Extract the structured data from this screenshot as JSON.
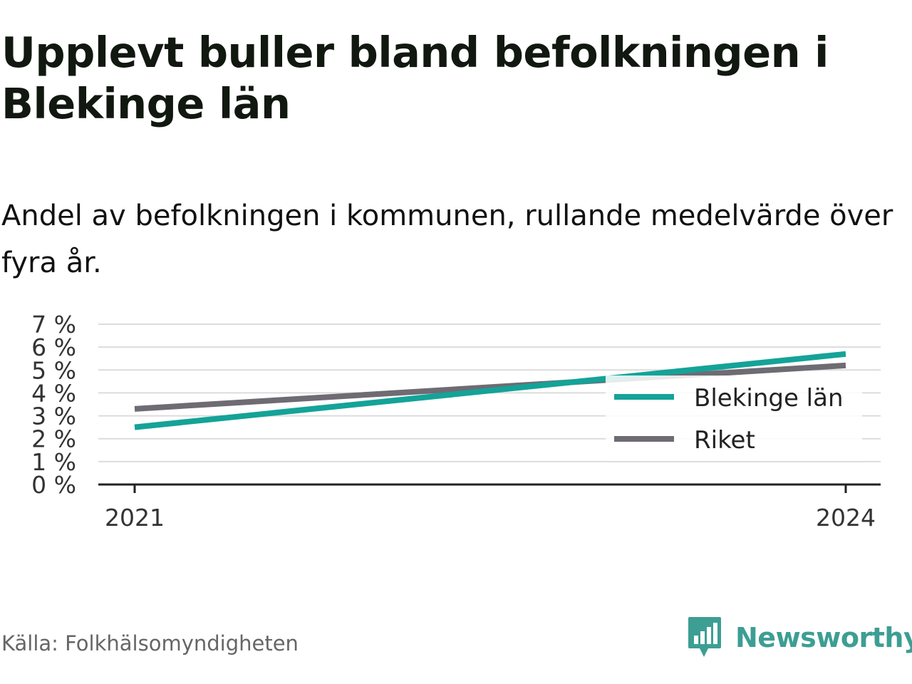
{
  "header": {
    "title": "Upplevt buller bland befolkningen i Blekinge län",
    "subtitle": "Andel av befolkningen i kommunen, rullande medelvärde över fyra år."
  },
  "footer": {
    "source": "Källa: Folkhälsomyndigheten",
    "brand": "Newsworthy",
    "brand_icon": "bar-chart-speech-bubble-icon"
  },
  "colors": {
    "series_blekinge": "#14a398",
    "series_riket": "#6e6b73",
    "grid": "#dcdcdc",
    "axis": "#222222",
    "brand": "#3d9e93"
  },
  "chart_data": {
    "type": "line",
    "x": [
      2021,
      2024
    ],
    "x_tick_labels": [
      "2021",
      "2024"
    ],
    "y_tick_labels": [
      "0 %",
      "1 %",
      "2 %",
      "3 %",
      "4 %",
      "5 %",
      "6 %",
      "7 %"
    ],
    "ylim": [
      0,
      7
    ],
    "grid": true,
    "legend_position": "right",
    "series": [
      {
        "name": "Blekinge län",
        "values": [
          2.5,
          5.7
        ]
      },
      {
        "name": "Riket",
        "values": [
          3.3,
          5.2
        ]
      }
    ]
  }
}
